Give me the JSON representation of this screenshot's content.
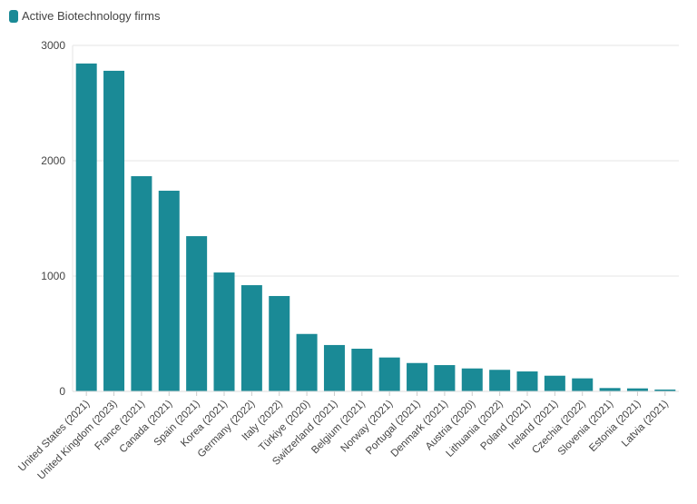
{
  "chart_data": {
    "type": "bar",
    "legend": {
      "label": "Active Biotechnology firms",
      "position": "top-left"
    },
    "color": "#1a8a96",
    "categories": [
      "United States (2021)",
      "United Kingdom (2023)",
      "France (2021)",
      "Canada (2021)",
      "Spain (2021)",
      "Korea (2021)",
      "Germany (2022)",
      "Italy (2022)",
      "Türkiye (2020)",
      "Switzerland (2021)",
      "Belgium (2021)",
      "Norway (2021)",
      "Portugal (2021)",
      "Denmark (2021)",
      "Austria (2020)",
      "Lithuania (2022)",
      "Poland (2021)",
      "Ireland (2021)",
      "Czechia (2022)",
      "Slovenia (2021)",
      "Estonia (2021)",
      "Latvia (2021)"
    ],
    "values": [
      2843,
      2780,
      1866,
      1740,
      1346,
      1031,
      921,
      827,
      498,
      402,
      370,
      294,
      246,
      228,
      199,
      187,
      173,
      136,
      113,
      29,
      26,
      16
    ],
    "yticks": [
      0,
      1000,
      2000,
      3000
    ],
    "ylim": [
      0,
      3000
    ],
    "grid": true
  }
}
